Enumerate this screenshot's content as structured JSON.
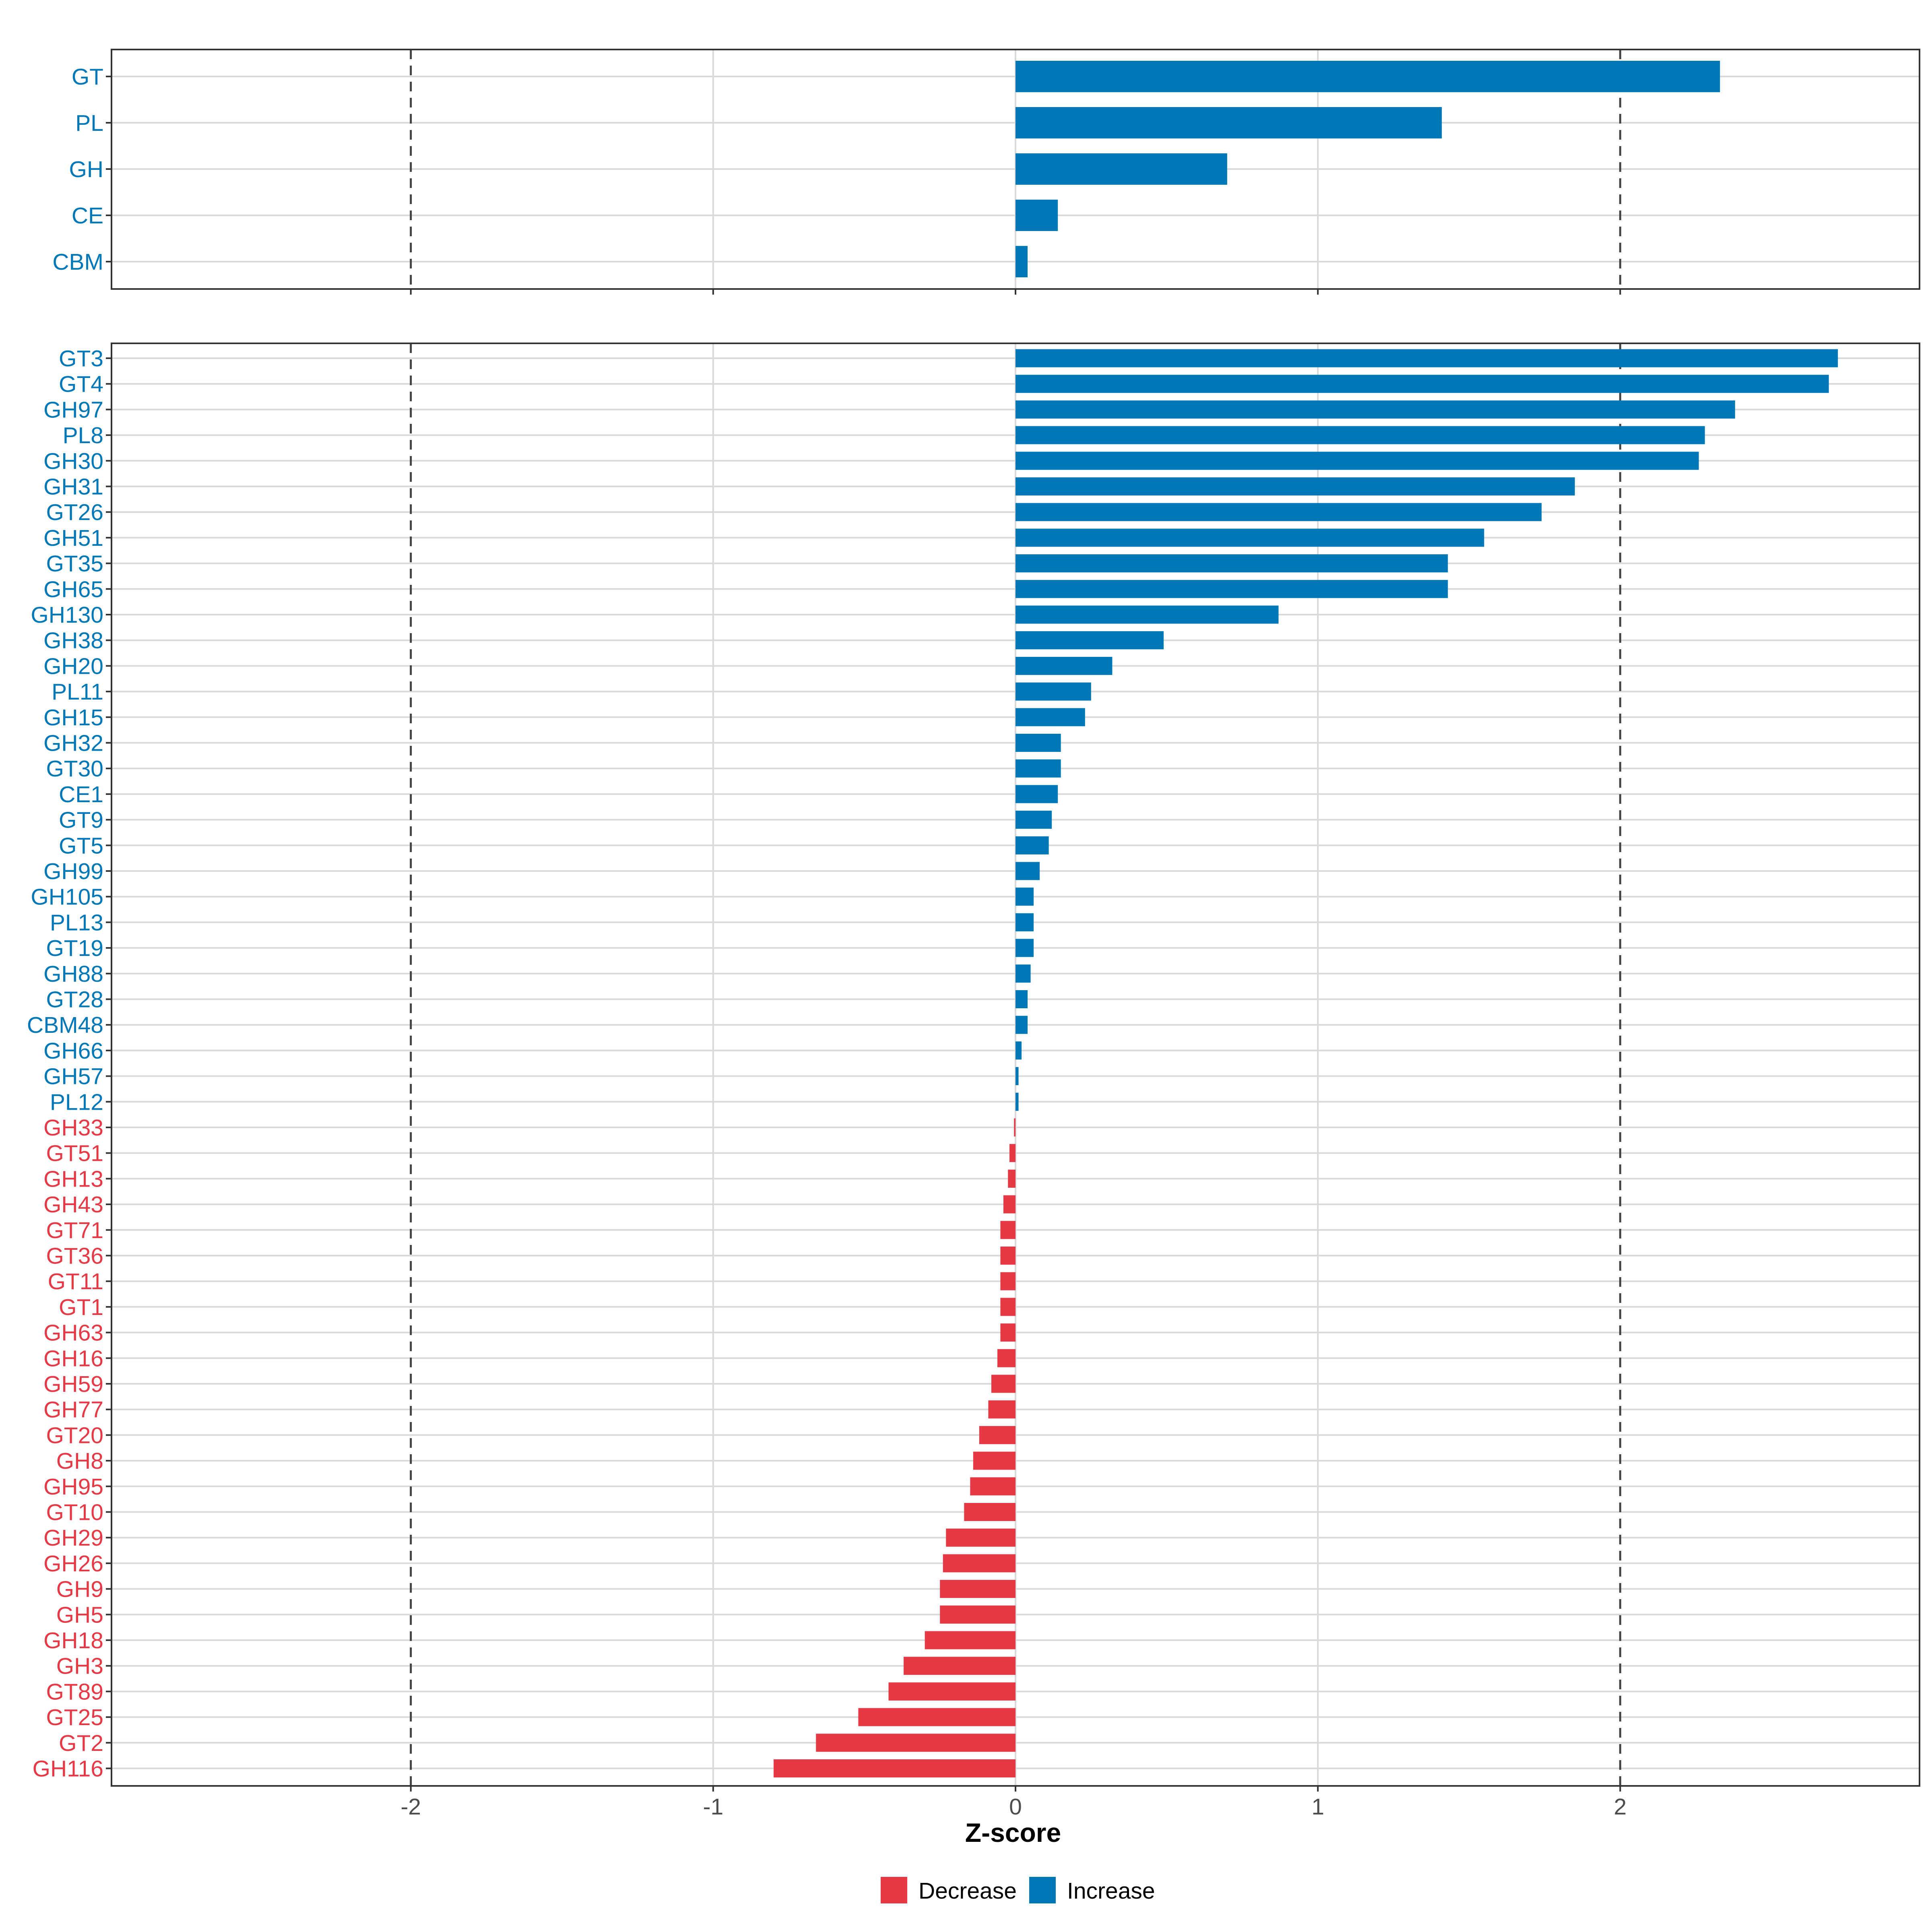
{
  "chart_data": [
    {
      "type": "bar",
      "orientation": "horizontal",
      "panel": "top",
      "categories": [
        "GT",
        "PL",
        "GH",
        "CE",
        "CBM"
      ],
      "values": [
        2.33,
        1.41,
        0.7,
        0.14,
        0.04
      ],
      "xlim": [
        -2.99,
        2.99
      ],
      "x_ticks": [
        -2,
        -1,
        0,
        1,
        2
      ],
      "reference_lines": [
        -2,
        2
      ]
    },
    {
      "type": "bar",
      "orientation": "horizontal",
      "panel": "bottom",
      "categories": [
        "GT3",
        "GT4",
        "GH97",
        "PL8",
        "GH30",
        "GH31",
        "GT26",
        "GH51",
        "GT35",
        "GH65",
        "GH130",
        "GH38",
        "GH20",
        "PL11",
        "GH15",
        "GH32",
        "GT30",
        "CE1",
        "GT9",
        "GT5",
        "GH99",
        "GH105",
        "PL13",
        "GT19",
        "GH88",
        "GT28",
        "CBM48",
        "GH66",
        "GH57",
        "PL12",
        "GH33",
        "GT51",
        "GH13",
        "GH43",
        "GT71",
        "GT36",
        "GT11",
        "GT1",
        "GH63",
        "GH16",
        "GH59",
        "GH77",
        "GT20",
        "GH8",
        "GH95",
        "GT10",
        "GH29",
        "GH26",
        "GH9",
        "GH5",
        "GH18",
        "GH3",
        "GT89",
        "GT25",
        "GT2",
        "GH116"
      ],
      "values": [
        2.72,
        2.69,
        2.38,
        2.28,
        2.26,
        1.85,
        1.74,
        1.55,
        1.43,
        1.43,
        0.87,
        0.49,
        0.32,
        0.25,
        0.23,
        0.15,
        0.15,
        0.14,
        0.12,
        0.11,
        0.08,
        0.06,
        0.06,
        0.06,
        0.05,
        0.04,
        0.04,
        0.02,
        0.01,
        0.01,
        -0.005,
        -0.02,
        -0.025,
        -0.04,
        -0.05,
        -0.05,
        -0.05,
        -0.05,
        -0.05,
        -0.06,
        -0.08,
        -0.09,
        -0.12,
        -0.14,
        -0.15,
        -0.17,
        -0.23,
        -0.24,
        -0.25,
        -0.25,
        -0.3,
        -0.37,
        -0.42,
        -0.52,
        -0.66,
        -0.8
      ],
      "xlim": [
        -2.99,
        2.99
      ],
      "x_ticks": [
        -2,
        -1,
        0,
        1,
        2
      ],
      "x_tick_labels": [
        "-2",
        "-1",
        "0",
        "1",
        "2"
      ],
      "reference_lines": [
        -2,
        2
      ]
    }
  ],
  "xlabel": "Z-score",
  "legend": {
    "position": "bottom",
    "items": [
      {
        "label": "Decrease",
        "color": "#e63946"
      },
      {
        "label": "Increase",
        "color": "#0077b6"
      }
    ]
  },
  "colors": {
    "increase": "#0077b6",
    "decrease": "#e63946",
    "grid": "#d9d9d9",
    "panel_border": "#333333",
    "reference_line": "#444444",
    "tick_text": "#4d4d4d"
  }
}
